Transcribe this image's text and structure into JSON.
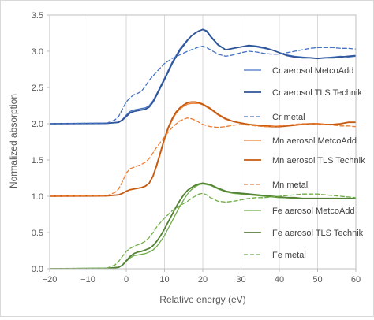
{
  "chart_data": {
    "type": "line",
    "title": "",
    "xlabel": "Relative energy (eV)",
    "ylabel": "Normalized absorption",
    "xlim": [
      -20,
      60
    ],
    "ylim": [
      0,
      3.5
    ],
    "xticks": [
      -20,
      -10,
      0,
      10,
      20,
      30,
      40,
      50,
      60
    ],
    "xtick_labels": [
      "−20",
      "−10",
      "0",
      "10",
      "20",
      "30",
      "40",
      "50",
      "60"
    ],
    "yticks": [
      0,
      0.5,
      1,
      1.5,
      2,
      2.5,
      3,
      3.5
    ],
    "ytick_labels": [
      "0.0",
      "0.5",
      "1.0",
      "1.5",
      "2.0",
      "2.5",
      "3.0",
      "3.5"
    ],
    "grid": "vertical",
    "legend_position": "right, inside plot area",
    "series": [
      {
        "name": "Cr aerosol MetcoAdd",
        "color": "#4472c4",
        "dash": "solid",
        "width": 1.3,
        "x": [
          -20,
          -5,
          -2,
          -1,
          0,
          1,
          2,
          3,
          4,
          5,
          6,
          7,
          8,
          10,
          12,
          14,
          16,
          17,
          18,
          19,
          20,
          21,
          22,
          24,
          26,
          28,
          30,
          32,
          34,
          36,
          38,
          40,
          42,
          44,
          46,
          48,
          50,
          52,
          54,
          56,
          58,
          60
        ],
        "y": [
          2.0,
          2.005,
          2.02,
          2.06,
          2.12,
          2.17,
          2.19,
          2.2,
          2.21,
          2.22,
          2.25,
          2.32,
          2.42,
          2.63,
          2.85,
          3.03,
          3.16,
          3.21,
          3.25,
          3.28,
          3.3,
          3.27,
          3.2,
          3.08,
          3.02,
          3.04,
          3.06,
          3.07,
          3.06,
          3.04,
          3.02,
          2.98,
          2.95,
          2.93,
          2.92,
          2.91,
          2.9,
          2.91,
          2.92,
          2.93,
          2.92,
          2.93
        ]
      },
      {
        "name": "Cr aerosol TLS Technik",
        "color": "#2f5597",
        "dash": "solid",
        "width": 1.8,
        "x": [
          -20,
          -5,
          -2,
          -1,
          0,
          1,
          2,
          3,
          4,
          5,
          6,
          7,
          8,
          10,
          12,
          14,
          16,
          17,
          18,
          19,
          20,
          21,
          22,
          24,
          26,
          28,
          30,
          32,
          34,
          36,
          38,
          40,
          42,
          44,
          46,
          48,
          50,
          52,
          54,
          56,
          58,
          60
        ],
        "y": [
          2.0,
          2.005,
          2.02,
          2.05,
          2.1,
          2.15,
          2.17,
          2.18,
          2.19,
          2.2,
          2.23,
          2.3,
          2.4,
          2.61,
          2.83,
          3.01,
          3.15,
          3.21,
          3.25,
          3.28,
          3.3,
          3.28,
          3.21,
          3.09,
          3.02,
          3.04,
          3.06,
          3.08,
          3.07,
          3.05,
          3.02,
          2.98,
          2.94,
          2.92,
          2.91,
          2.91,
          2.9,
          2.91,
          2.91,
          2.92,
          2.93,
          2.94
        ]
      },
      {
        "name": "Cr metal",
        "color": "#4472c4",
        "dash": "dashed",
        "width": 1.3,
        "x": [
          -20,
          -5,
          -3,
          -2,
          -1,
          0,
          1,
          2,
          3,
          4,
          5,
          6,
          8,
          10,
          12,
          14,
          16,
          18,
          19,
          20,
          21,
          22,
          24,
          26,
          28,
          30,
          32,
          34,
          36,
          38,
          40,
          42,
          44,
          46,
          48,
          50,
          52,
          54,
          56,
          58,
          60
        ],
        "y": [
          2.0,
          2.01,
          2.05,
          2.1,
          2.2,
          2.3,
          2.36,
          2.4,
          2.42,
          2.45,
          2.52,
          2.6,
          2.72,
          2.83,
          2.9,
          2.95,
          3.0,
          3.04,
          3.06,
          3.07,
          3.05,
          3.02,
          2.96,
          2.93,
          2.95,
          2.98,
          3.0,
          2.99,
          2.97,
          2.96,
          2.96,
          2.98,
          3.0,
          3.02,
          3.04,
          3.05,
          3.05,
          3.05,
          3.04,
          3.04,
          3.03
        ]
      },
      {
        "name": "Mn aerosol MetcoAdd",
        "color": "#ed7d31",
        "dash": "solid",
        "width": 1.3,
        "x": [
          -20,
          -5,
          -2,
          -1,
          0,
          1,
          2,
          3,
          4,
          5,
          6,
          7,
          8,
          9,
          10,
          11,
          12,
          13,
          14,
          15,
          16,
          17,
          18,
          19,
          20,
          22,
          24,
          26,
          28,
          30,
          32,
          34,
          36,
          38,
          40,
          42,
          44,
          46,
          48,
          50,
          52,
          54,
          56,
          58,
          60
        ],
        "y": [
          1.0,
          1.005,
          1.02,
          1.04,
          1.07,
          1.09,
          1.1,
          1.11,
          1.12,
          1.14,
          1.18,
          1.28,
          1.42,
          1.6,
          1.78,
          1.93,
          2.05,
          2.14,
          2.2,
          2.24,
          2.27,
          2.28,
          2.28,
          2.28,
          2.26,
          2.2,
          2.12,
          2.06,
          2.03,
          2.01,
          1.99,
          1.98,
          1.98,
          1.97,
          1.96,
          1.97,
          1.98,
          1.99,
          2.0,
          2.0,
          1.99,
          1.99,
          2.0,
          2.02,
          2.02
        ]
      },
      {
        "name": "Mn aerosol TLS Technik",
        "color": "#c55a11",
        "dash": "solid",
        "width": 1.8,
        "x": [
          -20,
          -5,
          -2,
          -1,
          0,
          1,
          2,
          3,
          4,
          5,
          6,
          7,
          8,
          9,
          10,
          11,
          12,
          13,
          14,
          15,
          16,
          17,
          18,
          19,
          20,
          22,
          24,
          26,
          28,
          30,
          32,
          34,
          36,
          38,
          40,
          42,
          44,
          46,
          48,
          50,
          52,
          54,
          56,
          58,
          60
        ],
        "y": [
          1.0,
          1.005,
          1.02,
          1.04,
          1.07,
          1.09,
          1.1,
          1.11,
          1.12,
          1.14,
          1.18,
          1.28,
          1.44,
          1.62,
          1.8,
          1.95,
          2.07,
          2.16,
          2.22,
          2.26,
          2.29,
          2.3,
          2.3,
          2.29,
          2.27,
          2.21,
          2.13,
          2.07,
          2.03,
          2.01,
          1.99,
          1.98,
          1.97,
          1.96,
          1.96,
          1.97,
          1.98,
          1.99,
          2.0,
          2.0,
          1.99,
          1.99,
          2.0,
          2.02,
          2.02
        ]
      },
      {
        "name": "Mn metal",
        "color": "#ed7d31",
        "dash": "dashed",
        "width": 1.3,
        "x": [
          -20,
          -5,
          -3,
          -2,
          -1,
          0,
          1,
          2,
          3,
          4,
          5,
          6,
          7,
          8,
          10,
          12,
          14,
          16,
          17,
          18,
          19,
          20,
          22,
          24,
          26,
          28,
          30,
          32,
          34,
          36,
          38,
          40,
          42,
          44,
          46,
          48,
          50,
          52,
          54,
          56,
          58,
          60
        ],
        "y": [
          1.0,
          1.01,
          1.05,
          1.1,
          1.2,
          1.32,
          1.38,
          1.4,
          1.42,
          1.44,
          1.47,
          1.52,
          1.6,
          1.68,
          1.82,
          1.95,
          2.04,
          2.08,
          2.07,
          2.05,
          2.02,
          1.99,
          1.96,
          1.95,
          1.96,
          1.98,
          1.99,
          1.98,
          1.97,
          1.96,
          1.96,
          1.97,
          1.98,
          1.99,
          2.0,
          2.0,
          2.0,
          1.99,
          1.98,
          1.97,
          1.97,
          1.96
        ]
      },
      {
        "name": "Fe aerosol MetcoAdd",
        "color": "#70ad47",
        "dash": "solid",
        "width": 1.3,
        "x": [
          -20,
          -5,
          -2,
          -1,
          0,
          1,
          2,
          3,
          4,
          5,
          6,
          7,
          8,
          9,
          10,
          11,
          12,
          13,
          14,
          15,
          16,
          17,
          18,
          19,
          20,
          22,
          24,
          26,
          28,
          30,
          32,
          34,
          36,
          38,
          40,
          42,
          44,
          46,
          48,
          50,
          52,
          54,
          56,
          58,
          60
        ],
        "y": [
          0.0,
          0.005,
          0.02,
          0.05,
          0.1,
          0.15,
          0.18,
          0.19,
          0.2,
          0.21,
          0.23,
          0.26,
          0.31,
          0.38,
          0.46,
          0.56,
          0.66,
          0.76,
          0.86,
          0.95,
          1.03,
          1.09,
          1.13,
          1.16,
          1.17,
          1.15,
          1.1,
          1.06,
          1.04,
          1.03,
          1.02,
          1.01,
          1.0,
          0.99,
          0.98,
          0.98,
          0.97,
          0.97,
          0.97,
          0.97,
          0.97,
          0.97,
          0.97,
          0.97,
          0.97
        ]
      },
      {
        "name": "Fe aerosol TLS Technik",
        "color": "#548235",
        "dash": "solid",
        "width": 1.8,
        "x": [
          -20,
          -5,
          -2,
          -1,
          0,
          1,
          2,
          3,
          4,
          5,
          6,
          7,
          8,
          9,
          10,
          11,
          12,
          13,
          14,
          15,
          16,
          17,
          18,
          19,
          20,
          22,
          24,
          26,
          28,
          30,
          32,
          34,
          36,
          38,
          40,
          42,
          44,
          46,
          48,
          50,
          52,
          54,
          56,
          58,
          60
        ],
        "y": [
          0.0,
          0.005,
          0.02,
          0.05,
          0.11,
          0.17,
          0.21,
          0.23,
          0.24,
          0.26,
          0.28,
          0.32,
          0.38,
          0.46,
          0.55,
          0.65,
          0.75,
          0.85,
          0.94,
          1.02,
          1.08,
          1.12,
          1.15,
          1.17,
          1.18,
          1.16,
          1.11,
          1.07,
          1.05,
          1.04,
          1.03,
          1.02,
          1.01,
          1.0,
          0.99,
          0.98,
          0.98,
          0.97,
          0.97,
          0.97,
          0.97,
          0.97,
          0.97,
          0.97,
          0.97
        ]
      },
      {
        "name": "Fe metal",
        "color": "#70ad47",
        "dash": "dashed",
        "width": 1.3,
        "x": [
          -20,
          -5,
          -3,
          -2,
          -1,
          0,
          1,
          2,
          3,
          4,
          5,
          6,
          7,
          8,
          10,
          12,
          14,
          16,
          17,
          18,
          19,
          20,
          21,
          22,
          24,
          26,
          28,
          30,
          32,
          34,
          36,
          38,
          40,
          42,
          44,
          46,
          48,
          50,
          52,
          54,
          56,
          58,
          60
        ],
        "y": [
          0.0,
          0.01,
          0.05,
          0.1,
          0.17,
          0.24,
          0.28,
          0.31,
          0.33,
          0.35,
          0.38,
          0.43,
          0.5,
          0.58,
          0.7,
          0.8,
          0.87,
          0.93,
          0.97,
          1.0,
          1.03,
          1.04,
          1.02,
          0.98,
          0.93,
          0.92,
          0.93,
          0.95,
          0.97,
          0.98,
          0.98,
          0.99,
          1.0,
          1.01,
          1.02,
          1.03,
          1.03,
          1.03,
          1.02,
          1.01,
          1.0,
          0.99,
          0.98
        ]
      }
    ]
  }
}
